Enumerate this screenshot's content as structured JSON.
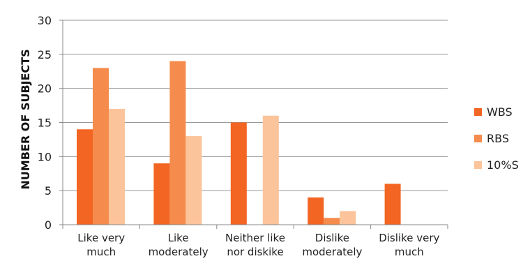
{
  "chart_data": {
    "type": "bar",
    "title": "",
    "xlabel": "",
    "ylabel": "NUMBER OF SUBJECTS",
    "ylim": [
      0,
      30
    ],
    "yticks": [
      0,
      5,
      10,
      15,
      20,
      25,
      30
    ],
    "grid": true,
    "legend_position": "right",
    "categories": [
      [
        "Like very",
        "much"
      ],
      [
        "Like",
        "moderately"
      ],
      [
        "Neither like",
        "nor diskike"
      ],
      [
        "Dislike",
        "moderately"
      ],
      [
        "Dislike very",
        "much"
      ]
    ],
    "series": [
      {
        "name": "WBS",
        "color": "#F26522",
        "values": [
          14,
          9,
          15,
          4,
          6
        ]
      },
      {
        "name": "RBS",
        "color": "#F58B4C",
        "values": [
          23,
          24,
          0,
          1,
          0
        ]
      },
      {
        "name": "10%S",
        "color": "#FBC49A",
        "values": [
          17,
          13,
          16,
          2,
          0
        ]
      }
    ]
  }
}
